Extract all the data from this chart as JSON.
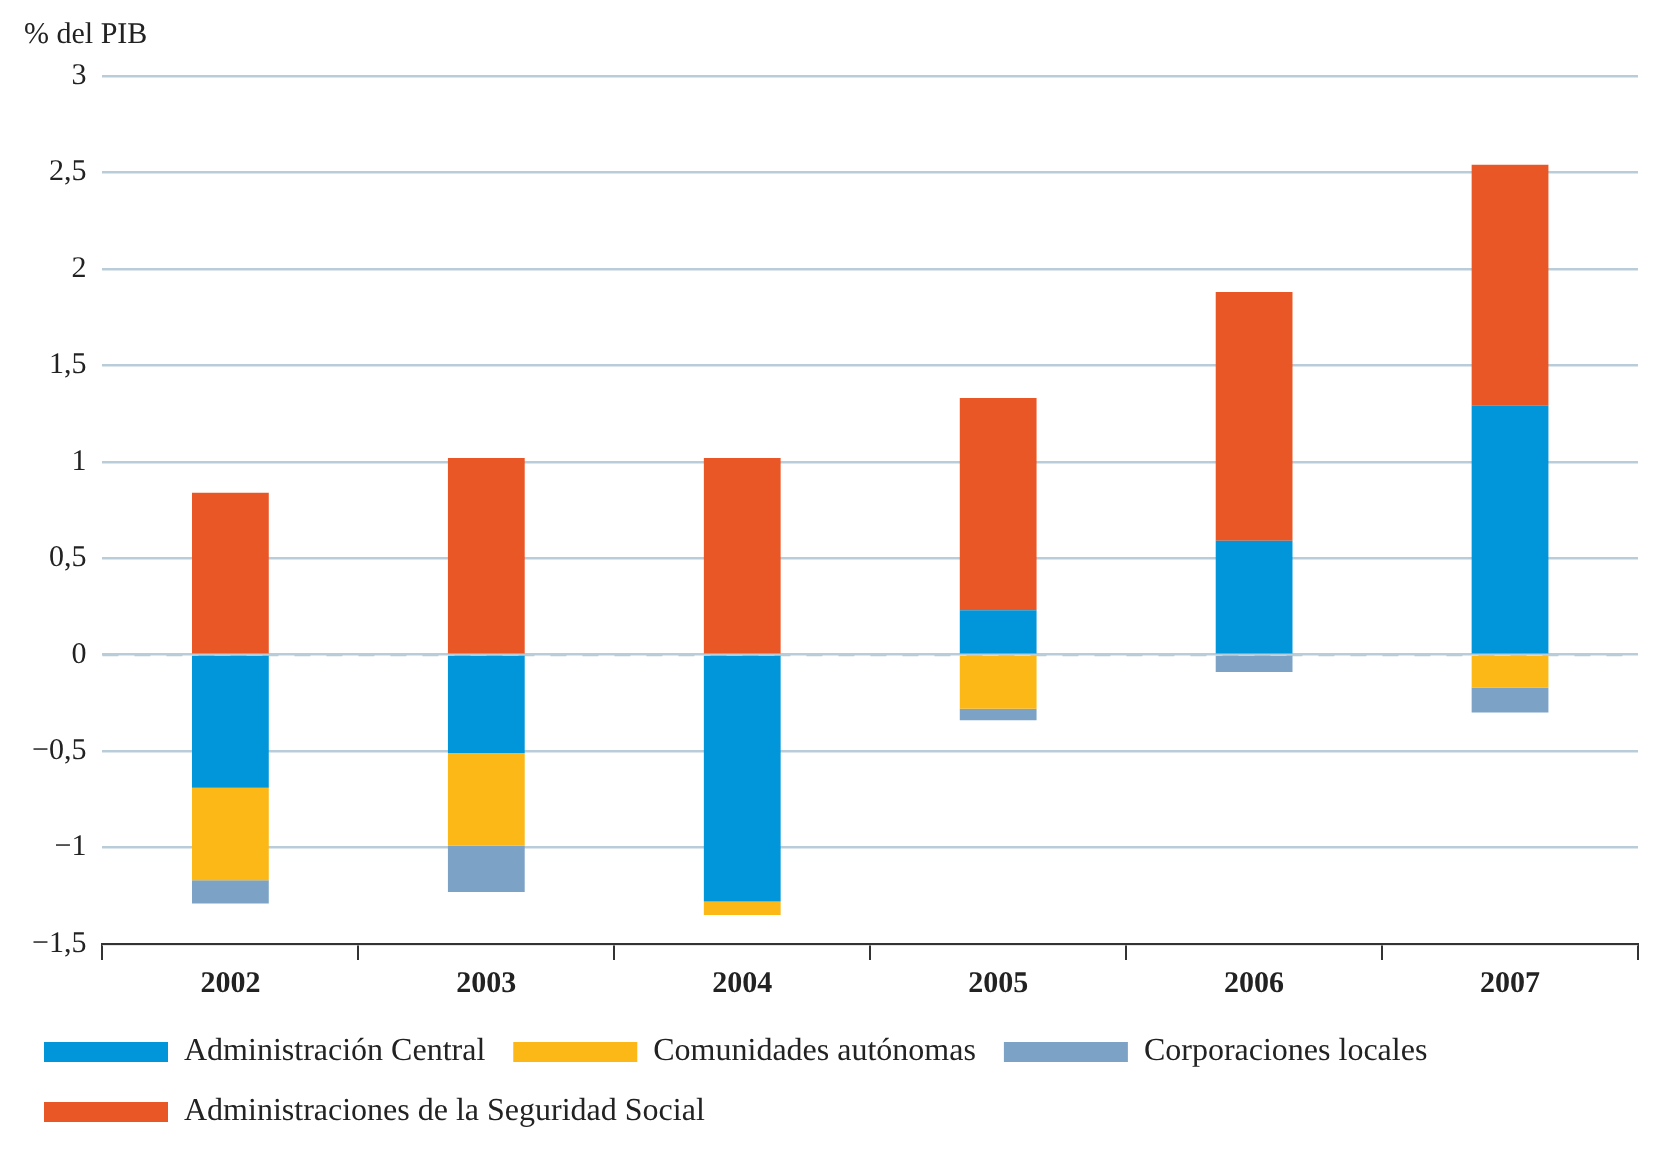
{
  "chart_data": {
    "type": "bar",
    "stacked": true,
    "ylabel": "% del PIB",
    "categories": [
      "2002",
      "2003",
      "2004",
      "2005",
      "2006",
      "2007"
    ],
    "series": [
      {
        "name": "Administración Central",
        "color": "#0096d9",
        "values": [
          -0.69,
          -0.51,
          -1.28,
          0.23,
          0.59,
          1.29
        ]
      },
      {
        "name": "Comunidades autónomas",
        "color": "#fcb817",
        "values": [
          -0.48,
          -0.48,
          -0.07,
          -0.28,
          0,
          -0.17
        ]
      },
      {
        "name": "Corporaciones locales",
        "color": "#7ca3c5",
        "values": [
          -0.12,
          -0.24,
          0,
          -0.06,
          -0.09,
          -0.13
        ]
      },
      {
        "name": "Administraciones de la Seguridad Social",
        "color": "#e95726",
        "values": [
          0.84,
          1.02,
          1.02,
          1.1,
          1.29,
          1.25
        ]
      }
    ],
    "ylim": [
      -1.5,
      3
    ],
    "yticks": [
      {
        "value": -1.5,
        "label": "−1,5"
      },
      {
        "value": -1,
        "label": "−1"
      },
      {
        "value": -0.5,
        "label": "−0,5"
      },
      0,
      {
        "value": 0.5,
        "label": "0,5"
      },
      1,
      {
        "value": 1.5,
        "label": "1,5"
      },
      2,
      {
        "value": 2.5,
        "label": "2,5"
      },
      3
    ],
    "grid": "y",
    "legend": "bottom",
    "ref_lines": [
      {
        "axis": "y",
        "value": 0,
        "color": "#b9cdd8",
        "line_style": "dashed"
      }
    ]
  }
}
